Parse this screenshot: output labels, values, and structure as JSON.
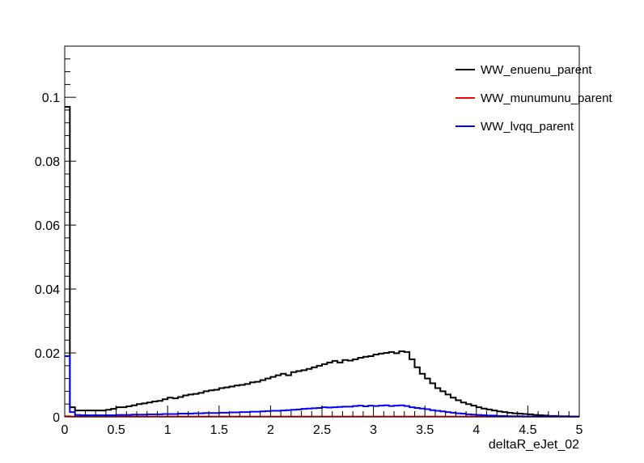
{
  "chart_data": {
    "type": "line",
    "title": "",
    "xlabel": "deltaR_eJet_02",
    "ylabel": "",
    "xlim": [
      0,
      5
    ],
    "ylim": [
      0,
      0.116
    ],
    "x_ticks": [
      "0",
      "0.5",
      "1",
      "1.5",
      "2",
      "2.5",
      "3",
      "3.5",
      "4",
      "4.5",
      "5"
    ],
    "y_ticks": [
      "0",
      "0.02",
      "0.04",
      "0.06",
      "0.08",
      "0.1"
    ],
    "grid": false,
    "legend_position": "top-right",
    "bin_width": 0.05,
    "series": [
      {
        "name": "WW_enuenu_parent",
        "color": "#000000",
        "values": [
          0.097,
          0.003,
          0.002,
          0.002,
          0.002,
          0.002,
          0.002,
          0.002,
          0.0022,
          0.0025,
          0.003,
          0.003,
          0.0033,
          0.0036,
          0.004,
          0.0042,
          0.0045,
          0.0048,
          0.005,
          0.0055,
          0.006,
          0.0058,
          0.0062,
          0.0067,
          0.007,
          0.0072,
          0.0075,
          0.008,
          0.0083,
          0.0085,
          0.009,
          0.0092,
          0.0095,
          0.0098,
          0.01,
          0.0103,
          0.0108,
          0.011,
          0.0115,
          0.012,
          0.0125,
          0.013,
          0.0135,
          0.013,
          0.014,
          0.0143,
          0.0146,
          0.015,
          0.0155,
          0.016,
          0.0165,
          0.017,
          0.0175,
          0.017,
          0.0178,
          0.0176,
          0.018,
          0.0185,
          0.0188,
          0.019,
          0.0195,
          0.0198,
          0.02,
          0.0203,
          0.0199,
          0.0205,
          0.0203,
          0.018,
          0.0155,
          0.0135,
          0.012,
          0.0105,
          0.009,
          0.008,
          0.007,
          0.006,
          0.0052,
          0.0045,
          0.004,
          0.0035,
          0.003,
          0.0026,
          0.0023,
          0.002,
          0.0017,
          0.0015,
          0.0013,
          0.0011,
          0.001,
          0.0009,
          0.0008,
          0.0006,
          0.0005,
          0.0004,
          0.0003,
          0.0003,
          0.0002,
          0.0002,
          0.0001,
          0.0001
        ]
      },
      {
        "name": "WW_munumunu_parent",
        "color": "#ff0000",
        "values": [
          0.0002,
          0.0001,
          0.0001,
          0.0001,
          0.0001,
          0.0001,
          0.0001,
          0.0001,
          0.0001,
          0.0001,
          0.0001,
          0.0001,
          0.0001,
          0.0001,
          0.0001,
          0.0001,
          0.0001,
          0.0001,
          0.0001,
          0.0001,
          0.0001,
          0.0001,
          0.0001,
          0.0001,
          0.0001,
          0.0001,
          0.0001,
          0.0001,
          0.0001,
          0.0001,
          0.0001,
          0.0001,
          0.0001,
          0.0001,
          0.0001,
          0.0001,
          0.0001,
          0.0001,
          0.0001,
          0.0001,
          0.0001,
          0.0001,
          0.0001,
          0.0001,
          0.0001,
          0.0001,
          0.0001,
          0.0001,
          0.0001,
          0.0001,
          0.0001,
          0.0001,
          0.0001,
          0.0001,
          0.0001,
          0.0001,
          0.0001,
          0.0001,
          0.0001,
          0.0001,
          0.0001,
          0.0001,
          0.0001,
          0.0001,
          0.0001,
          0.0001,
          0.0001,
          0.0001,
          0.0001,
          0.0001,
          0.0001,
          0.0001,
          0.0001,
          0.0001,
          0.0001,
          0.0001,
          0.0001,
          0.0001,
          0.0001,
          0.0001,
          0.0001,
          0.0001,
          0.0001,
          0.0001,
          0.0001,
          0.0001,
          0.0001,
          0.0001,
          0.0001,
          0.0001,
          0.0001,
          0.0001,
          0.0001,
          0.0001,
          0.0001,
          0.0001,
          0.0001,
          0.0001,
          0.0001,
          0.0001
        ]
      },
      {
        "name": "WW_lvqq_parent",
        "color": "#0000ff",
        "values": [
          0.019,
          0.0015,
          0.0006,
          0.0005,
          0.0005,
          0.0005,
          0.0005,
          0.0005,
          0.0005,
          0.0005,
          0.0006,
          0.0006,
          0.0006,
          0.0007,
          0.0007,
          0.0007,
          0.0008,
          0.0008,
          0.0008,
          0.0009,
          0.0009,
          0.0009,
          0.001,
          0.001,
          0.001,
          0.0011,
          0.0011,
          0.0012,
          0.0012,
          0.0012,
          0.0013,
          0.0013,
          0.0014,
          0.0014,
          0.0015,
          0.0015,
          0.0016,
          0.0016,
          0.0017,
          0.0018,
          0.0019,
          0.0019,
          0.002,
          0.0021,
          0.0022,
          0.0023,
          0.0025,
          0.0026,
          0.0027,
          0.0028,
          0.003,
          0.0029,
          0.003,
          0.0031,
          0.0032,
          0.0032,
          0.0034,
          0.0035,
          0.0033,
          0.0035,
          0.0034,
          0.0035,
          0.0036,
          0.0034,
          0.0035,
          0.0036,
          0.0034,
          0.003,
          0.0028,
          0.0026,
          0.0024,
          0.0021,
          0.0019,
          0.0017,
          0.0015,
          0.0013,
          0.0011,
          0.001,
          0.0008,
          0.0007,
          0.0006,
          0.0005,
          0.0004,
          0.0004,
          0.0003,
          0.0003,
          0.0002,
          0.0002,
          0.0002,
          0.0001,
          0.0001,
          0.0001,
          0.0001,
          0.0001,
          0.0001,
          0.0001,
          0.0001,
          0.0001,
          0.0001,
          0.0001
        ]
      }
    ]
  }
}
